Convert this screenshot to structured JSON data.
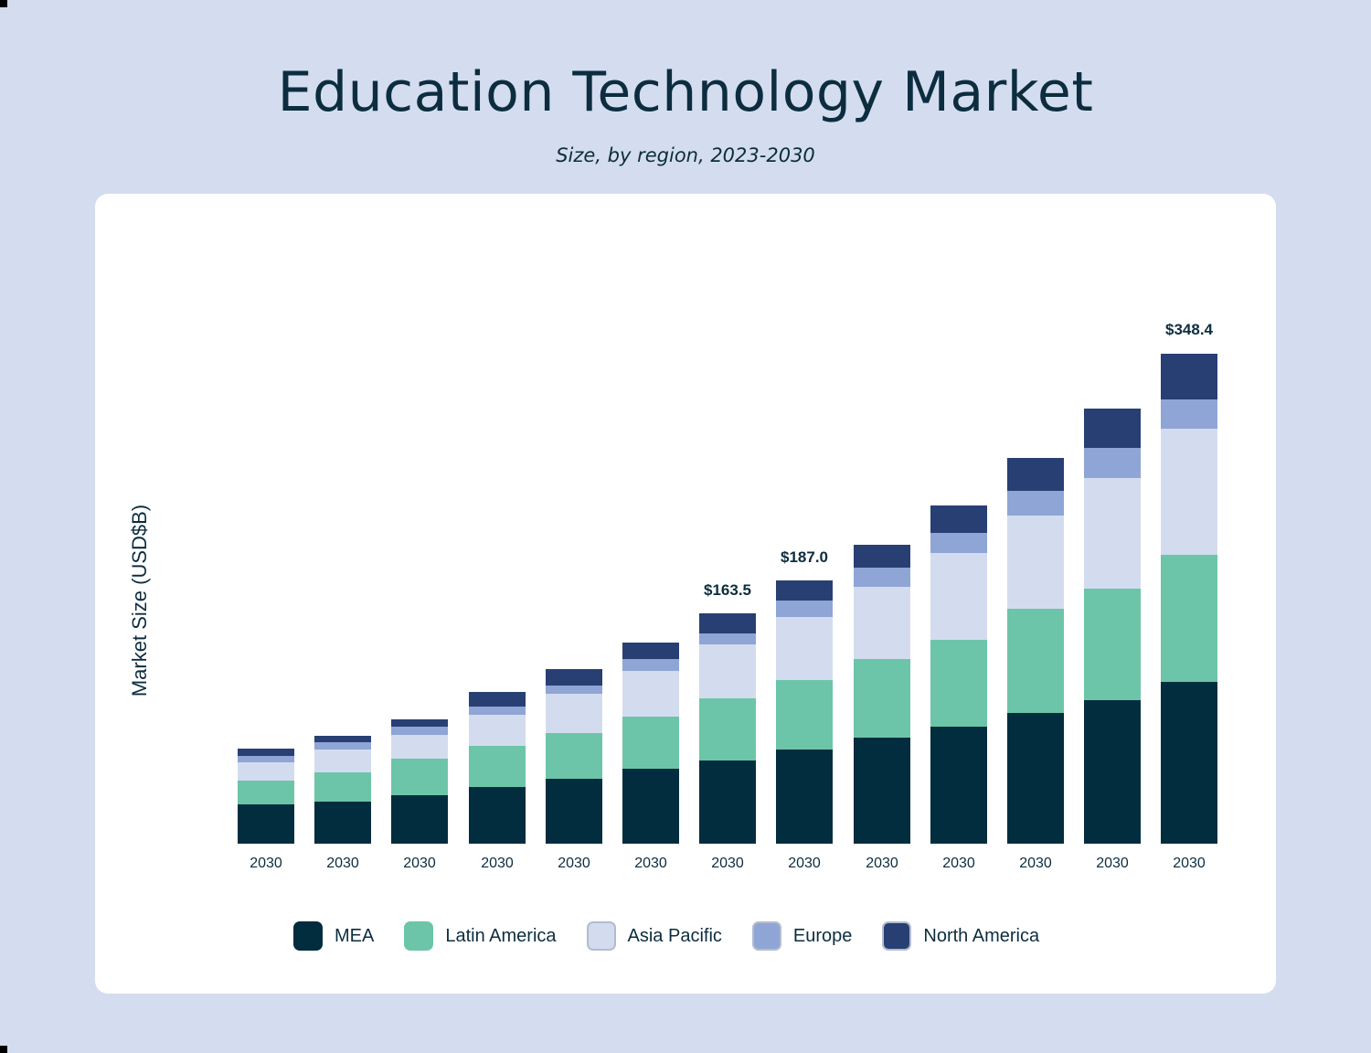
{
  "header": {
    "title": "Education Technology Market",
    "subtitle": "Size, by region, 2023-2030"
  },
  "colors": {
    "background": "#d4ddef",
    "card": "#ffffff",
    "text": "#0c2d3f",
    "MEA": "#022d3e",
    "Latin America": "#6cc5a9",
    "Asia Pacific": "#d3dcee",
    "Europe": "#8fa5d5",
    "North America": "#283f73"
  },
  "chart_data": {
    "type": "bar",
    "stacked": true,
    "title": "Education Technology Market",
    "subtitle": "Size, by region, 2023-2030",
    "xlabel": "",
    "ylabel": "Market Size (USD$B)",
    "categories": [
      "2030",
      "2030",
      "2030",
      "2030",
      "2030",
      "2030",
      "2030",
      "2030",
      "2030",
      "2030",
      "2030",
      "2030",
      "2030"
    ],
    "series": [
      {
        "name": "MEA",
        "color": "#022d3e",
        "values": [
          27.9,
          29.9,
          34.4,
          40.3,
          46.1,
          53.2,
          59.1,
          66.9,
          75.3,
          83.1,
          92.9,
          101.9,
          114.9
        ]
      },
      {
        "name": "Latin America",
        "color": "#6cc5a9",
        "values": [
          16.9,
          20.8,
          26.0,
          29.2,
          32.5,
          37.0,
          44.2,
          49.4,
          55.8,
          61.7,
          74.0,
          79.2,
          90.3
        ]
      },
      {
        "name": "Asia Pacific",
        "color": "#d3dcee",
        "values": [
          13.0,
          16.2,
          16.9,
          22.1,
          27.9,
          32.5,
          38.3,
          44.8,
          51.3,
          61.7,
          66.2,
          78.6,
          89.6
        ]
      },
      {
        "name": "Europe",
        "color": "#8fa5d5",
        "values": [
          4.5,
          5.2,
          5.8,
          5.8,
          5.8,
          8.4,
          7.8,
          11.7,
          13.6,
          14.3,
          17.5,
          21.4,
          20.8
        ]
      },
      {
        "name": "North America",
        "color": "#283f73",
        "values": [
          5.2,
          4.5,
          5.2,
          10.4,
          11.7,
          11.7,
          14.1,
          14.2,
          16.2,
          19.5,
          23.4,
          27.9,
          32.8
        ]
      }
    ],
    "totals": [
      67.5,
      76.6,
      88.3,
      107.8,
      124.0,
      142.8,
      163.5,
      187.0,
      212.2,
      240.3,
      274.0,
      309.0,
      348.4
    ],
    "annotations": [
      {
        "index": 6,
        "label": "$163.5"
      },
      {
        "index": 7,
        "label": "$187.0"
      },
      {
        "index": 12,
        "label": "$348.4"
      }
    ],
    "ylim": [
      0,
      360
    ],
    "grid": false,
    "legend_position": "bottom"
  },
  "legend": [
    {
      "label": "MEA",
      "color": "#022d3e"
    },
    {
      "label": "Latin America",
      "color": "#6cc5a9"
    },
    {
      "label": "Asia Pacific",
      "color": "#d3dcee"
    },
    {
      "label": "Europe",
      "color": "#8fa5d5"
    },
    {
      "label": "North America",
      "color": "#283f73"
    }
  ]
}
